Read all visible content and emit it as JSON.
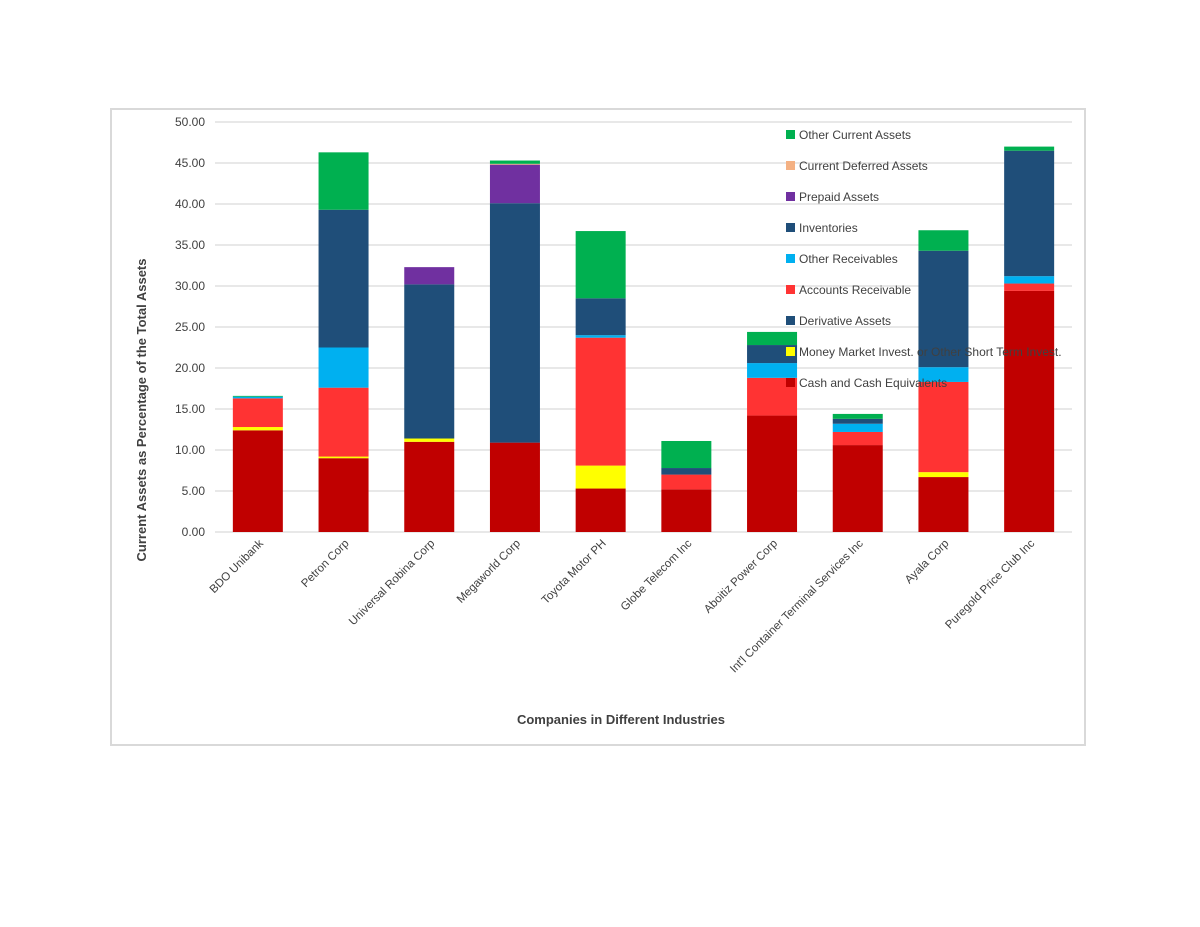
{
  "chart_data": {
    "type": "bar",
    "stacked": true,
    "title": "",
    "xlabel": "Companies in Different Industries",
    "ylabel": "Current Assets as Percentage of the Total Assets",
    "ylim": [
      0,
      50
    ],
    "yticks": [
      "0.00",
      "5.00",
      "10.00",
      "15.00",
      "20.00",
      "25.00",
      "30.00",
      "35.00",
      "40.00",
      "45.00",
      "50.00"
    ],
    "grid": true,
    "legend_position": "top-right",
    "categories": [
      "BDO Unibank",
      "Petron Corp",
      "Universal Robina Corp",
      "Megaworld Corp",
      "Toyota Motor PH",
      "Globe Telecom Inc",
      "Aboitiz Power Corp",
      "Int'l Container Terminal Services Inc",
      "Ayala Corp",
      "Puregold Price Club Inc"
    ],
    "series": [
      {
        "name": "Cash and Cash Equivalents",
        "color": "#c00000",
        "values": [
          12.4,
          9.0,
          11.0,
          10.9,
          5.3,
          5.2,
          14.2,
          10.6,
          6.7,
          29.4
        ]
      },
      {
        "name": "Money Market Invest. or Other Short Term Invest.",
        "color": "#ffff00",
        "values": [
          0.4,
          0.2,
          0.4,
          0.0,
          2.8,
          0.0,
          0.0,
          0.0,
          0.6,
          0.0
        ]
      },
      {
        "name": "Derivative Assets",
        "color": "#1f4e79",
        "values": [
          0.0,
          0.0,
          0.0,
          0.0,
          0.0,
          0.0,
          0.0,
          0.0,
          0.0,
          0.0
        ]
      },
      {
        "name": "Accounts Receivable",
        "color": "#ff3333",
        "values": [
          3.5,
          8.4,
          0.0,
          0.0,
          15.6,
          1.8,
          4.6,
          1.6,
          11.0,
          0.9
        ]
      },
      {
        "name": "Other Receivables",
        "color": "#00b0f0",
        "values": [
          0.2,
          4.9,
          0.0,
          0.0,
          0.3,
          0.0,
          1.8,
          1.0,
          1.8,
          0.9
        ]
      },
      {
        "name": "Inventories",
        "color": "#1f4e79",
        "values": [
          0.0,
          16.8,
          18.8,
          29.2,
          4.5,
          0.8,
          2.2,
          0.6,
          14.2,
          15.3
        ]
      },
      {
        "name": "Prepaid Assets",
        "color": "#7030a0",
        "values": [
          0.0,
          0.0,
          2.1,
          4.7,
          0.0,
          0.0,
          0.0,
          0.0,
          0.0,
          0.0
        ]
      },
      {
        "name": "Current Deferred Assets",
        "color": "#f4b183",
        "values": [
          0.0,
          0.0,
          0.0,
          0.1,
          0.0,
          0.0,
          0.0,
          0.0,
          0.0,
          0.0
        ]
      },
      {
        "name": "Other Current Assets",
        "color": "#00b050",
        "values": [
          0.1,
          7.0,
          0.0,
          0.4,
          8.2,
          3.3,
          1.6,
          0.6,
          2.5,
          0.5
        ]
      }
    ],
    "legend_order": [
      "Other Current Assets",
      "Current Deferred Assets",
      "Prepaid Assets",
      "Inventories",
      "Other Receivables",
      "Accounts Receivable",
      "Derivative Assets",
      "Money Market Invest. or Other Short Term Invest.",
      "Cash and Cash Equivalents"
    ]
  }
}
